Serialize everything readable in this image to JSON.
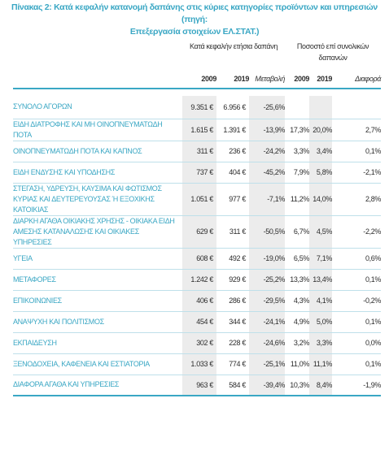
{
  "title": {
    "line1": "Πίνακας 2: Κατά κεφαλήν κατανομή δαπάνης στις κύριες κατηγορίες προϊόντων και υπηρεσιών (πηγή:",
    "line2": "Επεξεργασία στοιχείων ΕΛ.ΣΤΑΤ.)"
  },
  "header": {
    "group1": "Κατά κεφαλήν ετήσια δαπάνη",
    "group2": "Ποσοστό επί συνολικών δαπανών",
    "cols": [
      "2009",
      "2019",
      "Μεταβολή",
      "2009",
      "2019",
      "Διαφορά"
    ]
  },
  "rows": [
    {
      "label": "ΣΥΝΟΛΟ ΑΓΟΡΩΝ",
      "v2009": "9.351 €",
      "v2019": "6.956 €",
      "change": "-25,6%",
      "p2009": "",
      "p2019": "",
      "diff": "",
      "kind": "total"
    },
    {
      "label": "ΕΙΔΗ ΔΙΑΤΡΟΦΗΣ ΚΑΙ ΜΗ ΟΙΝΟΠΝΕΥΜΑΤΩΔΗ ΠΟΤΑ",
      "v2009": "1.615 €",
      "v2019": "1.391 €",
      "change": "-13,9%",
      "p2009": "17,3%",
      "p2019": "20,0%",
      "diff": "2,7%",
      "kind": "single"
    },
    {
      "label": "ΟΙΝΟΠΝΕΥΜΑΤΩΔΗ ΠΟΤΑ ΚΑΙ ΚΑΠΝΟΣ",
      "v2009": "311 €",
      "v2019": "236 €",
      "change": "-24,2%",
      "p2009": "3,3%",
      "p2019": "3,4%",
      "diff": "0,1%",
      "kind": "single"
    },
    {
      "label": "ΕΙΔΗ ΕΝΔΥΣΗΣ ΚΑΙ ΥΠΟΔΗΣΗΣ",
      "v2009": "737 €",
      "v2019": "404 €",
      "change": "-45,2%",
      "p2009": "7,9%",
      "p2019": "5,8%",
      "diff": "-2,1%",
      "kind": "single"
    },
    {
      "label": "ΣΤΕΓΑΣΗ, ΥΔΡΕΥΣΗ, ΚΑΥΣΙΜΑ ΚΑΙ ΦΩΤΙΣΜΟΣ ΚΥΡΙΑΣ ΚΑΙ ΔΕΥΤΕΡΕΥΟΥΣΑΣ Ή ΕΞΟΧΙΚΗΣ ΚΑΤΟΙΚΙΑΣ",
      "v2009": "1.051 €",
      "v2019": "977 €",
      "change": "-7,1%",
      "p2009": "11,2%",
      "p2019": "14,0%",
      "diff": "2,8%",
      "kind": "double"
    },
    {
      "label": "ΔΙΑΡΚΗ ΑΓΑΘΑ ΟΙΚΙΑΚΗΣ ΧΡΗΣΗΣ - ΟΙΚΙΑΚΑ ΕΙΔΗ ΑΜΕΣΗΣ ΚΑΤΑΝΑΛΩΣΗΣ ΚΑΙ ΟΙΚΙΑΚΕΣ ΥΠΗΡΕΣΙΕΣ",
      "v2009": "629 €",
      "v2019": "311 €",
      "change": "-50,5%",
      "p2009": "6,7%",
      "p2019": "4,5%",
      "diff": "-2,2%",
      "kind": "double"
    },
    {
      "label": "ΥΓΕΙΑ",
      "v2009": "608 €",
      "v2019": "492 €",
      "change": "-19,0%",
      "p2009": "6,5%",
      "p2019": "7,1%",
      "diff": "0,6%",
      "kind": "single"
    },
    {
      "label": "ΜΕΤΑΦΟΡΕΣ",
      "v2009": "1.242 €",
      "v2019": "929 €",
      "change": "-25,2%",
      "p2009": "13,3%",
      "p2019": "13,4%",
      "diff": "0,1%",
      "kind": "single"
    },
    {
      "label": "ΕΠΙΚΟΙΝΩΝΙΕΣ",
      "v2009": "406 €",
      "v2019": "286 €",
      "change": "-29,5%",
      "p2009": "4,3%",
      "p2019": "4,1%",
      "diff": "-0,2%",
      "kind": "single"
    },
    {
      "label": "ΑΝΑΨΥΧΗ ΚΑΙ ΠΟΛΙΤΙΣΜΟΣ",
      "v2009": "454 €",
      "v2019": "344 €",
      "change": "-24,1%",
      "p2009": "4,9%",
      "p2019": "5,0%",
      "diff": "0,1%",
      "kind": "single"
    },
    {
      "label": "ΕΚΠΑΙΔΕΥΣΗ",
      "v2009": "302 €",
      "v2019": "228 €",
      "change": "-24,6%",
      "p2009": "3,2%",
      "p2019": "3,3%",
      "diff": "0,0%",
      "kind": "single"
    },
    {
      "label": "ΞΕΝΟΔΟΧΕΙΑ, ΚΑΦΕΝΕΙΑ ΚΑΙ ΕΣΤΙΑΤΟΡΙΑ",
      "v2009": "1.033 €",
      "v2019": "774 €",
      "change": "-25,1%",
      "p2009": "11,0%",
      "p2019": "11,1%",
      "diff": "0,1%",
      "kind": "single"
    },
    {
      "label": "ΔΙΑΦΟΡΑ ΑΓΑΘΑ ΚΑΙ ΥΠΗΡΕΣΙΕΣ",
      "v2009": "963 €",
      "v2019": "584 €",
      "change": "-39,4%",
      "p2009": "10,3%",
      "p2019": "8,4%",
      "diff": "-1,9%",
      "kind": "single"
    }
  ],
  "colors": {
    "accent": "#3aa7c4",
    "shade": "#ececec",
    "text": "#2d2d2d"
  }
}
